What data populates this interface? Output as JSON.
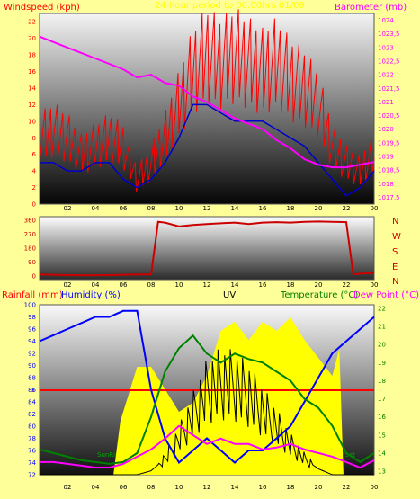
{
  "colors": {
    "background": "#ffff99",
    "wind": "#ff0000",
    "wind_avg": "#0000cc",
    "barometer": "#ff00ff",
    "direction": "#cc0000",
    "rainfall": "#ff0000",
    "humidity": "#0000ff",
    "uv": "#000000",
    "temperature": "#008000",
    "dewpoint": "#ff00ff",
    "sun": "#ffff00"
  },
  "top": {
    "label_left": "Windspeed (kph)",
    "label_center": "24 hour period to 00:00hrs 01/09",
    "label_right": "Barometer (mb)",
    "left_ticks": [
      "0",
      "2",
      "4",
      "6",
      "8",
      "10",
      "12",
      "14",
      "16",
      "18",
      "20",
      "22"
    ],
    "right_ticks": [
      "1017,5",
      "1018",
      "1018,5",
      "1019",
      "1019,5",
      "1020",
      "1020,5",
      "1021",
      "1021,5",
      "1022",
      "1022,5",
      "1023",
      "1023,5",
      "1024"
    ]
  },
  "mid": {
    "left_ticks": [
      "0",
      "90",
      "180",
      "270",
      "360"
    ],
    "right_labels": [
      "N",
      "W",
      "S",
      "E",
      "N"
    ]
  },
  "bottom": {
    "label_rain": "Rainfall (mm)",
    "label_hum": "Humidity (%)",
    "label_uv": "UV",
    "label_temp": "Temperature (°C)",
    "label_dew": "Dew Point (°C)",
    "rain_tick": "0",
    "left_ticks": [
      "72",
      "74",
      "76",
      "78",
      "80",
      "82",
      "84",
      "86",
      "88",
      "90",
      "92",
      "94",
      "96",
      "98",
      "100"
    ],
    "right_ticks": [
      "13",
      "14",
      "15",
      "16",
      "17",
      "18",
      "19",
      "20",
      "21",
      "22"
    ],
    "sunrise": "SunRise",
    "sunset": "SunSet"
  },
  "x_ticks": [
    "02",
    "04",
    "06",
    "08",
    "10",
    "12",
    "14",
    "16",
    "18",
    "20",
    "22",
    "00"
  ],
  "chart_data": [
    {
      "type": "line",
      "title": "24 hour period to 00:00hrs 01/09",
      "xlabel": "",
      "ylabel": "Windspeed (kph)",
      "ylim": [
        0,
        23
      ],
      "y2label": "Barometer (mb)",
      "y2lim": [
        1017.25,
        1024.25
      ],
      "x": [
        0,
        1,
        2,
        3,
        4,
        5,
        6,
        7,
        8,
        9,
        10,
        11,
        12,
        13,
        14,
        15,
        16,
        17,
        18,
        19,
        20,
        21,
        22,
        23,
        24
      ],
      "series": [
        {
          "name": "Windspeed (kph)",
          "values": [
            8,
            9,
            8,
            6,
            7,
            8,
            7,
            3,
            5,
            8,
            12,
            16,
            18,
            17,
            18,
            17,
            16,
            17,
            15,
            14,
            12,
            7,
            5,
            4,
            6
          ]
        },
        {
          "name": "Windspeed (kph)",
          "values": [
            5,
            5,
            4,
            4,
            5,
            5,
            3,
            2,
            3,
            5,
            8,
            12,
            12,
            11,
            10,
            10,
            10,
            9,
            8,
            7,
            5,
            3,
            1,
            2,
            4
          ]
        },
        {
          "name": "Barometer (mb)",
          "values": [
            1023.4,
            1023.2,
            1023.0,
            1022.8,
            1022.6,
            1022.4,
            1022.2,
            1021.9,
            1022.0,
            1021.7,
            1021.6,
            1021.2,
            1021.0,
            1020.7,
            1020.4,
            1020.2,
            1020.0,
            1019.6,
            1019.3,
            1018.9,
            1018.7,
            1018.6,
            1018.6,
            1018.7,
            1018.8
          ]
        }
      ]
    },
    {
      "type": "line",
      "ylabel": "",
      "ylim": [
        0,
        360
      ],
      "x": [
        0,
        1,
        2,
        3,
        4,
        5,
        6,
        7,
        8,
        8.5,
        9,
        10,
        11,
        12,
        13,
        14,
        15,
        16,
        17,
        18,
        19,
        20,
        21,
        22,
        22.5,
        23,
        24
      ],
      "series": [
        {
          "name": "",
          "values": [
            10,
            8,
            6,
            5,
            5,
            6,
            8,
            10,
            10,
            350,
            345,
            320,
            330,
            335,
            340,
            345,
            335,
            345,
            348,
            345,
            350,
            352,
            350,
            348,
            10,
            15,
            20
          ]
        }
      ]
    },
    {
      "type": "line",
      "xlabel": "",
      "ylabel": "Humidity (%)",
      "ylim": [
        72,
        100
      ],
      "y2label": "Temperature (°C)",
      "y2lim": [
        12.8,
        22.2
      ],
      "x": [
        0,
        1,
        2,
        3,
        4,
        5,
        6,
        7,
        8,
        9,
        10,
        11,
        12,
        13,
        14,
        15,
        16,
        17,
        18,
        19,
        20,
        21,
        22,
        23,
        24
      ],
      "series": [
        {
          "name": "Humidity (%)",
          "values": [
            94,
            95,
            96,
            97,
            98,
            98,
            99,
            99,
            86,
            78,
            74,
            76,
            78,
            76,
            74,
            76,
            76,
            78,
            80,
            84,
            88,
            92,
            94,
            96,
            98
          ]
        },
        {
          "name": "Temperature (°C)",
          "values": [
            14.2,
            14.0,
            13.8,
            13.6,
            13.5,
            13.4,
            13.5,
            14.0,
            16.0,
            18.5,
            19.8,
            20.5,
            19.5,
            19.0,
            19.5,
            19.2,
            19.0,
            18.5,
            18.0,
            17.0,
            16.5,
            15.5,
            14.0,
            13.5,
            14.0
          ]
        },
        {
          "name": "Dew Point (°C)",
          "values": [
            13.5,
            13.5,
            13.4,
            13.3,
            13.2,
            13.2,
            13.4,
            13.8,
            14.2,
            14.8,
            15.5,
            15.0,
            14.5,
            14.8,
            14.5,
            14.5,
            14.2,
            14.3,
            14.5,
            14.2,
            14.0,
            13.8,
            13.5,
            13.2,
            13.6
          ]
        },
        {
          "name": "UV",
          "values": [
            0,
            0,
            0,
            0,
            0,
            0,
            0,
            0,
            0.2,
            0.8,
            1.8,
            3.0,
            4.2,
            4.6,
            4.5,
            4.0,
            3.2,
            2.4,
            1.5,
            0.8,
            0.3,
            0,
            0,
            0,
            0
          ]
        }
      ]
    }
  ]
}
